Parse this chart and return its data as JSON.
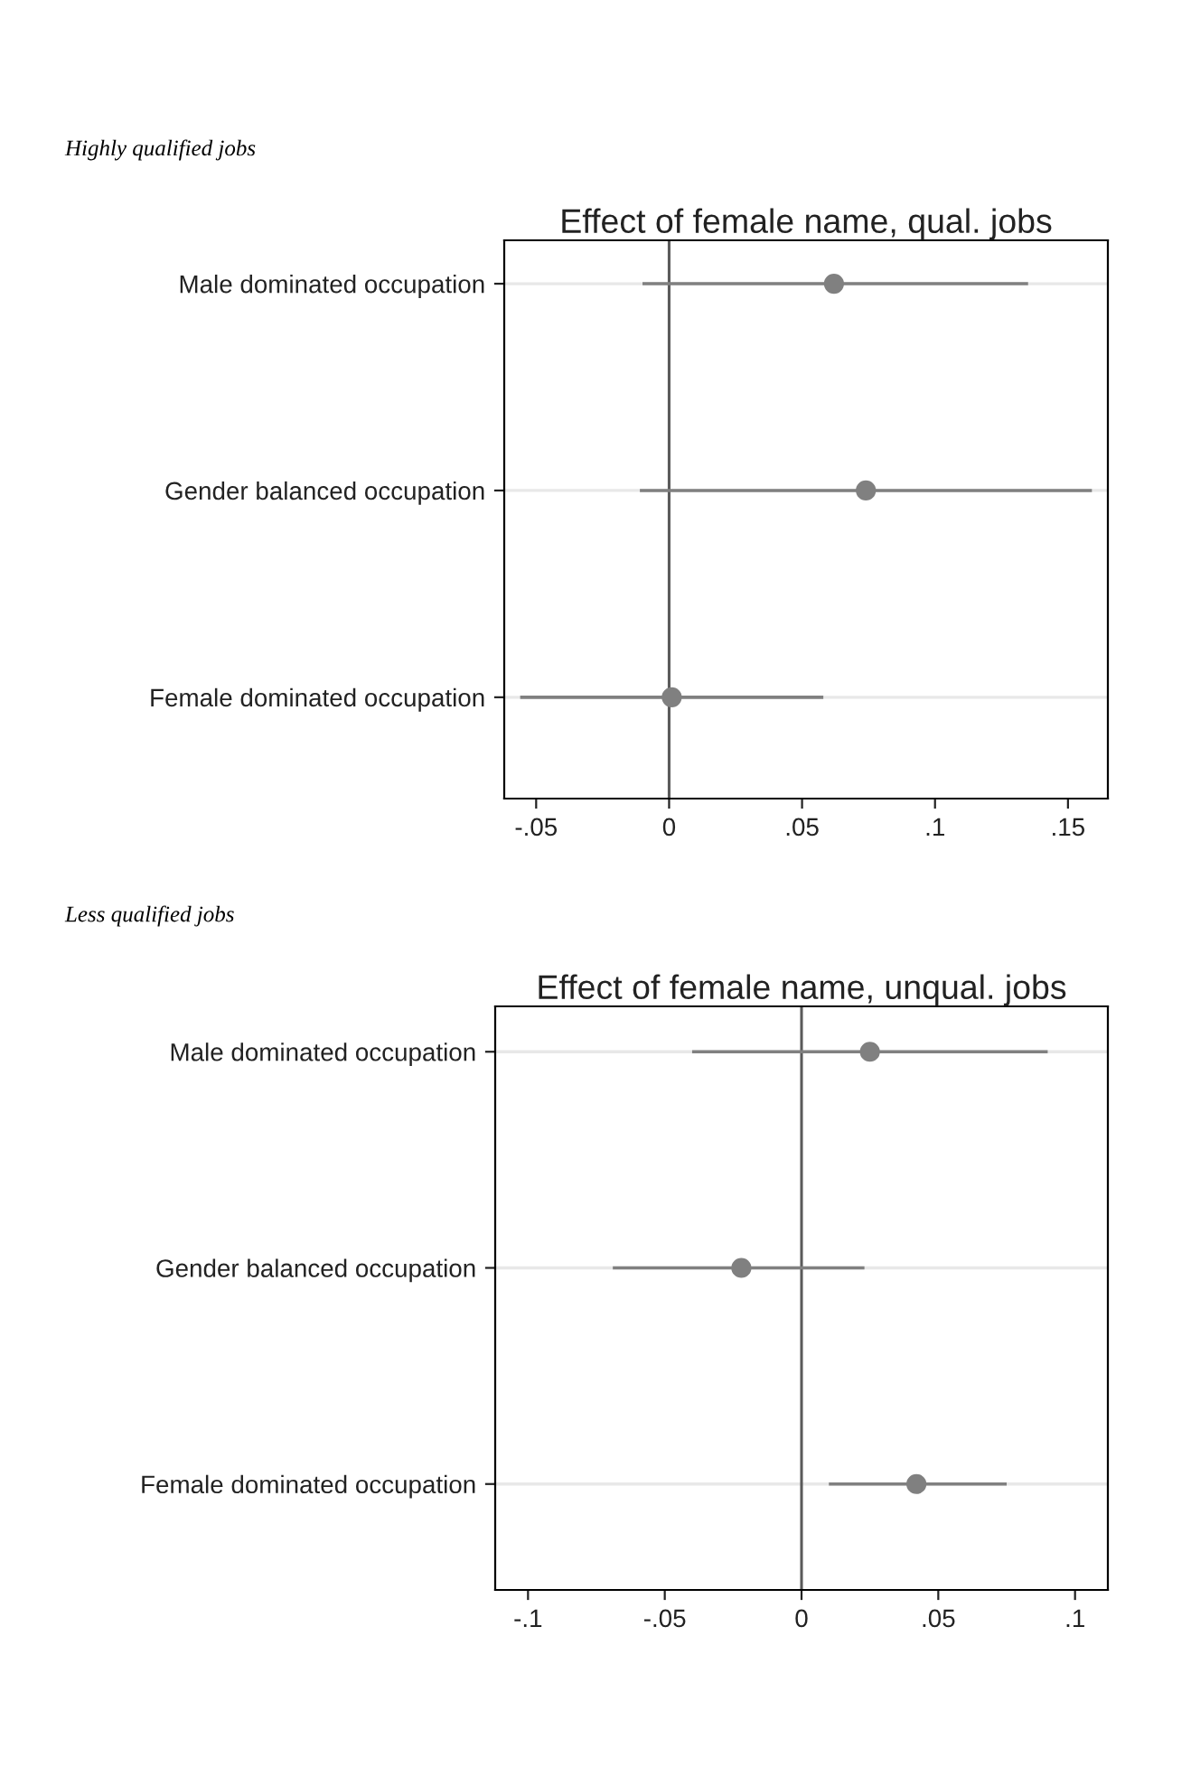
{
  "chart_data": [
    {
      "type": "scatter",
      "orientation": "horizontal",
      "subtitle": "Highly qualified jobs",
      "title": "Effect of female name, qual. jobs",
      "categories": [
        "Male dominated occupation",
        "Gender balanced occupation",
        "Female dominated occupation"
      ],
      "values": [
        0.062,
        0.074,
        0.001
      ],
      "errors": [
        [
          -0.01,
          0.135
        ],
        [
          -0.011,
          0.159
        ],
        [
          -0.056,
          0.058
        ]
      ],
      "color": "#808080",
      "marker": "circle",
      "grid": "y",
      "xlim": [
        -0.062,
        0.165
      ],
      "xticks": [
        {
          "value": -0.05,
          "label": "-.05"
        },
        0,
        {
          "value": 0.05,
          "label": ".05"
        },
        {
          "value": 0.1,
          "label": ".1"
        },
        {
          "value": 0.15,
          "label": ".15"
        }
      ],
      "ref_lines": [
        {
          "axis": "x",
          "value": 0,
          "color": "#5a5a5a"
        }
      ],
      "legend": false
    },
    {
      "type": "scatter",
      "orientation": "horizontal",
      "subtitle": "Less qualified jobs",
      "title": "Effect of female name, unqual. jobs",
      "categories": [
        "Male dominated occupation",
        "Gender balanced occupation",
        "Female dominated occupation"
      ],
      "values": [
        0.025,
        -0.022,
        0.042
      ],
      "errors": [
        [
          -0.04,
          0.09
        ],
        [
          -0.069,
          0.023
        ],
        [
          0.01,
          0.075
        ]
      ],
      "color": "#808080",
      "marker": "circle",
      "grid": "y",
      "xlim": [
        -0.112,
        0.112
      ],
      "xticks": [
        {
          "value": -0.1,
          "label": "-.1"
        },
        {
          "value": -0.05,
          "label": "-.05"
        },
        0,
        {
          "value": 0.05,
          "label": ".05"
        },
        {
          "value": 0.1,
          "label": ".1"
        }
      ],
      "ref_lines": [
        {
          "axis": "x",
          "value": 0,
          "color": "#5a5a5a"
        }
      ],
      "legend": false
    }
  ]
}
